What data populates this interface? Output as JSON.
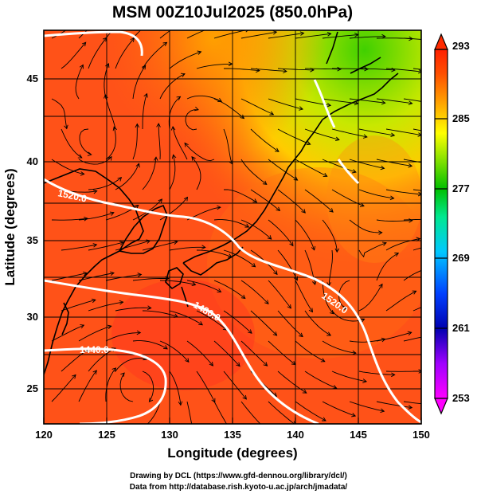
{
  "title": "MSM 00Z10Jul2025 (850.0hPa)",
  "xlabel": "Longitude (degrees)",
  "ylabel": "Latitude  (degrees)",
  "x_ticks": [
    "120",
    "125",
    "130",
    "135",
    "140",
    "145",
    "150"
  ],
  "y_ticks": [
    "25",
    "30",
    "35",
    "40",
    "45"
  ],
  "colorbar": {
    "ticks": [
      "293",
      "285",
      "277",
      "269",
      "261",
      "253"
    ],
    "colors": [
      "#ff00ff",
      "#c000ff",
      "#0000c8",
      "#0060ff",
      "#00c8ff",
      "#00ff80",
      "#00c800",
      "#a0f000",
      "#ffff00",
      "#ffb000",
      "#ff6000",
      "#ff2000"
    ]
  },
  "contour_labels": [
    "1520.0",
    "1520.0",
    "1480.0",
    "1440.0"
  ],
  "credits": {
    "line1": "Drawing by DCL (https://www.gfd-dennou.org/library/dcl/)",
    "line2": "Data from http://database.rish.kyoto-u.ac.jp/arch/jmadata/"
  },
  "map_data": {
    "variable": "temperature (K) with wind streamlines and geopotential height contours",
    "lon_range": [
      120,
      150
    ],
    "lat_range": [
      22.5,
      48
    ],
    "cb_range": [
      253,
      293
    ]
  }
}
